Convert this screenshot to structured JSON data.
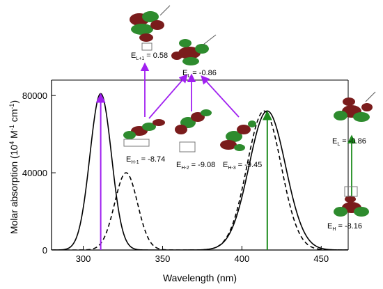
{
  "chart_data": {
    "type": "line",
    "xlabel": "Wavelength (nm)",
    "ylabel": "Molar absorption (10",
    "ylabel_sup1": "4",
    "ylabel_mid": " M",
    "ylabel_sup2": "-1",
    "ylabel_mid2": " cm",
    "ylabel_sup3": "-1",
    "ylabel_end": ")",
    "xlim": [
      280,
      467
    ],
    "ylim": [
      0,
      88000
    ],
    "x_ticks": [
      300,
      350,
      400,
      450
    ],
    "x_tick_labels": [
      "300",
      "350",
      "400",
      "450"
    ],
    "y_ticks": [
      0,
      40000,
      80000
    ],
    "y_tick_labels": [
      "0",
      "40000",
      "80000"
    ],
    "grid": false,
    "series": [
      {
        "style": "solid",
        "bands": [
          {
            "center": 311,
            "height": 81000,
            "sigma": 6.8
          },
          {
            "center": 416,
            "height": 72000,
            "sigma": 11.5
          }
        ]
      },
      {
        "style": "dashed",
        "bands": [
          {
            "center": 327,
            "height": 40000,
            "sigma": 7.2
          },
          {
            "center": 414,
            "height": 72000,
            "sigma": 10.8
          }
        ]
      }
    ],
    "transitions": [
      {
        "x": 311,
        "y": 81000,
        "color": "#a020f0"
      },
      {
        "x": 416,
        "y": 72000,
        "color": "#1e8c1e"
      }
    ],
    "orbitals": [
      {
        "id": "l1",
        "main": "E",
        "sub": "L+1",
        "value": " = 0.58"
      },
      {
        "id": "l",
        "main": "E",
        "sub": "L",
        "value": " = -0.86"
      },
      {
        "id": "h1",
        "main": "E",
        "sub": "H-1",
        "value": " = -8.74"
      },
      {
        "id": "h2",
        "main": "E",
        "sub": "H-2",
        "value": " = -9.08"
      },
      {
        "id": "h3",
        "main": "E",
        "sub": "H-3",
        "value": " = -9.45"
      },
      {
        "id": "lr",
        "main": "E",
        "sub": "L",
        "value": " = -0.86"
      },
      {
        "id": "h",
        "main": "E",
        "sub": "H",
        "value": " = -8.16"
      }
    ],
    "colors": {
      "purple": "#a020f0",
      "green": "#1e8c1e",
      "lobe_red": "#7a1c1c",
      "lobe_green": "#2e8b2e"
    }
  }
}
